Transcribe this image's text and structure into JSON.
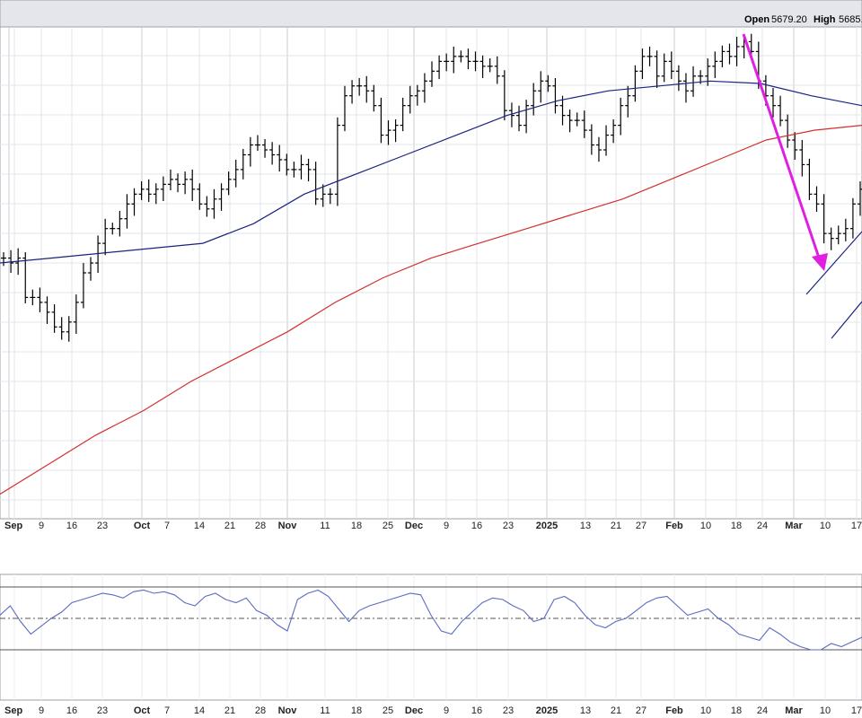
{
  "header": {
    "open_label": "Open",
    "open_value": "5679.20",
    "high_label": "High",
    "high_value": "5685."
  },
  "chart_data": {
    "type": "bar",
    "subtype": "ohlc-price-with-moving-averages-and-oscillator",
    "grid": true,
    "x_tick_labels": [
      {
        "text": "Sep",
        "major": true
      },
      {
        "text": "9",
        "major": false
      },
      {
        "text": "16",
        "major": false
      },
      {
        "text": "23",
        "major": false
      },
      {
        "text": "Oct",
        "major": true
      },
      {
        "text": "7",
        "major": false
      },
      {
        "text": "14",
        "major": false
      },
      {
        "text": "21",
        "major": false
      },
      {
        "text": "28",
        "major": false
      },
      {
        "text": "Nov",
        "major": true
      },
      {
        "text": "11",
        "major": false
      },
      {
        "text": "18",
        "major": false
      },
      {
        "text": "25",
        "major": false
      },
      {
        "text": "Dec",
        "major": true
      },
      {
        "text": "9",
        "major": false
      },
      {
        "text": "16",
        "major": false
      },
      {
        "text": "23",
        "major": false
      },
      {
        "text": "2025",
        "major": true
      },
      {
        "text": "13",
        "major": false
      },
      {
        "text": "21",
        "major": false
      },
      {
        "text": "27",
        "major": false
      },
      {
        "text": "Feb",
        "major": true
      },
      {
        "text": "10",
        "major": false
      },
      {
        "text": "18",
        "major": false
      },
      {
        "text": "24",
        "major": false
      },
      {
        "text": "Mar",
        "major": true
      },
      {
        "text": "10",
        "major": false
      },
      {
        "text": "17",
        "major": false
      }
    ],
    "price_series": {
      "name": "",
      "color": "#000000",
      "values": [
        0.53,
        0.52,
        0.53,
        0.45,
        0.45,
        0.44,
        0.42,
        0.39,
        0.38,
        0.4,
        0.44,
        0.5,
        0.52,
        0.56,
        0.59,
        0.59,
        0.61,
        0.64,
        0.66,
        0.67,
        0.66,
        0.67,
        0.68,
        0.69,
        0.68,
        0.69,
        0.67,
        0.64,
        0.63,
        0.65,
        0.67,
        0.69,
        0.71,
        0.74,
        0.76,
        0.76,
        0.75,
        0.74,
        0.73,
        0.71,
        0.71,
        0.72,
        0.71,
        0.65,
        0.66,
        0.66,
        0.8,
        0.86,
        0.88,
        0.88,
        0.87,
        0.84,
        0.78,
        0.79,
        0.8,
        0.84,
        0.86,
        0.87,
        0.89,
        0.91,
        0.93,
        0.93,
        0.94,
        0.94,
        0.93,
        0.93,
        0.92,
        0.92,
        0.9,
        0.83,
        0.82,
        0.8,
        0.84,
        0.87,
        0.89,
        0.88,
        0.84,
        0.82,
        0.81,
        0.81,
        0.79,
        0.76,
        0.75,
        0.78,
        0.8,
        0.84,
        0.86,
        0.91,
        0.94,
        0.94,
        0.9,
        0.93,
        0.91,
        0.89,
        0.87,
        0.9,
        0.9,
        0.92,
        0.93,
        0.95,
        0.94,
        0.96,
        0.97,
        0.95,
        0.89,
        0.86,
        0.84,
        0.81,
        0.77,
        0.75,
        0.72,
        0.66,
        0.64,
        0.58,
        0.57,
        0.58,
        0.59,
        0.64,
        0.67
      ]
    },
    "ma_50": {
      "name": "",
      "color": "#1a237e",
      "values": [
        0.52,
        0.53,
        0.54,
        0.55,
        0.56,
        0.6,
        0.66,
        0.7,
        0.74,
        0.78,
        0.82,
        0.85,
        0.87,
        0.88,
        0.89,
        0.885,
        0.86,
        0.84
      ]
    },
    "ma_200": {
      "name": "",
      "color": "#d32f2f",
      "values": [
        0.05,
        0.11,
        0.17,
        0.22,
        0.28,
        0.33,
        0.38,
        0.44,
        0.49,
        0.53,
        0.56,
        0.59,
        0.62,
        0.65,
        0.69,
        0.73,
        0.77,
        0.79,
        0.8
      ]
    },
    "trend_arrow": {
      "color": "#e020e0"
    },
    "channel_lines": {
      "color": "#1a237e"
    },
    "oscillator": {
      "upper_band": 70,
      "lower_band": 30,
      "mid_line": 50,
      "color": "#5c6bc0",
      "values": [
        52,
        58,
        48,
        40,
        45,
        50,
        54,
        60,
        62,
        64,
        66,
        65,
        63,
        67,
        68,
        66,
        67,
        65,
        60,
        58,
        64,
        66,
        62,
        60,
        63,
        55,
        52,
        46,
        42,
        62,
        66,
        68,
        64,
        56,
        48,
        55,
        58,
        60,
        62,
        64,
        66,
        65,
        52,
        42,
        40,
        48,
        54,
        60,
        63,
        62,
        58,
        55,
        48,
        50,
        62,
        64,
        60,
        52,
        46,
        44,
        48,
        50,
        55,
        60,
        63,
        64,
        58,
        52,
        54,
        56,
        50,
        46,
        40,
        38,
        36,
        44,
        40,
        35,
        32,
        30,
        30,
        34,
        32,
        35,
        38
      ]
    }
  }
}
